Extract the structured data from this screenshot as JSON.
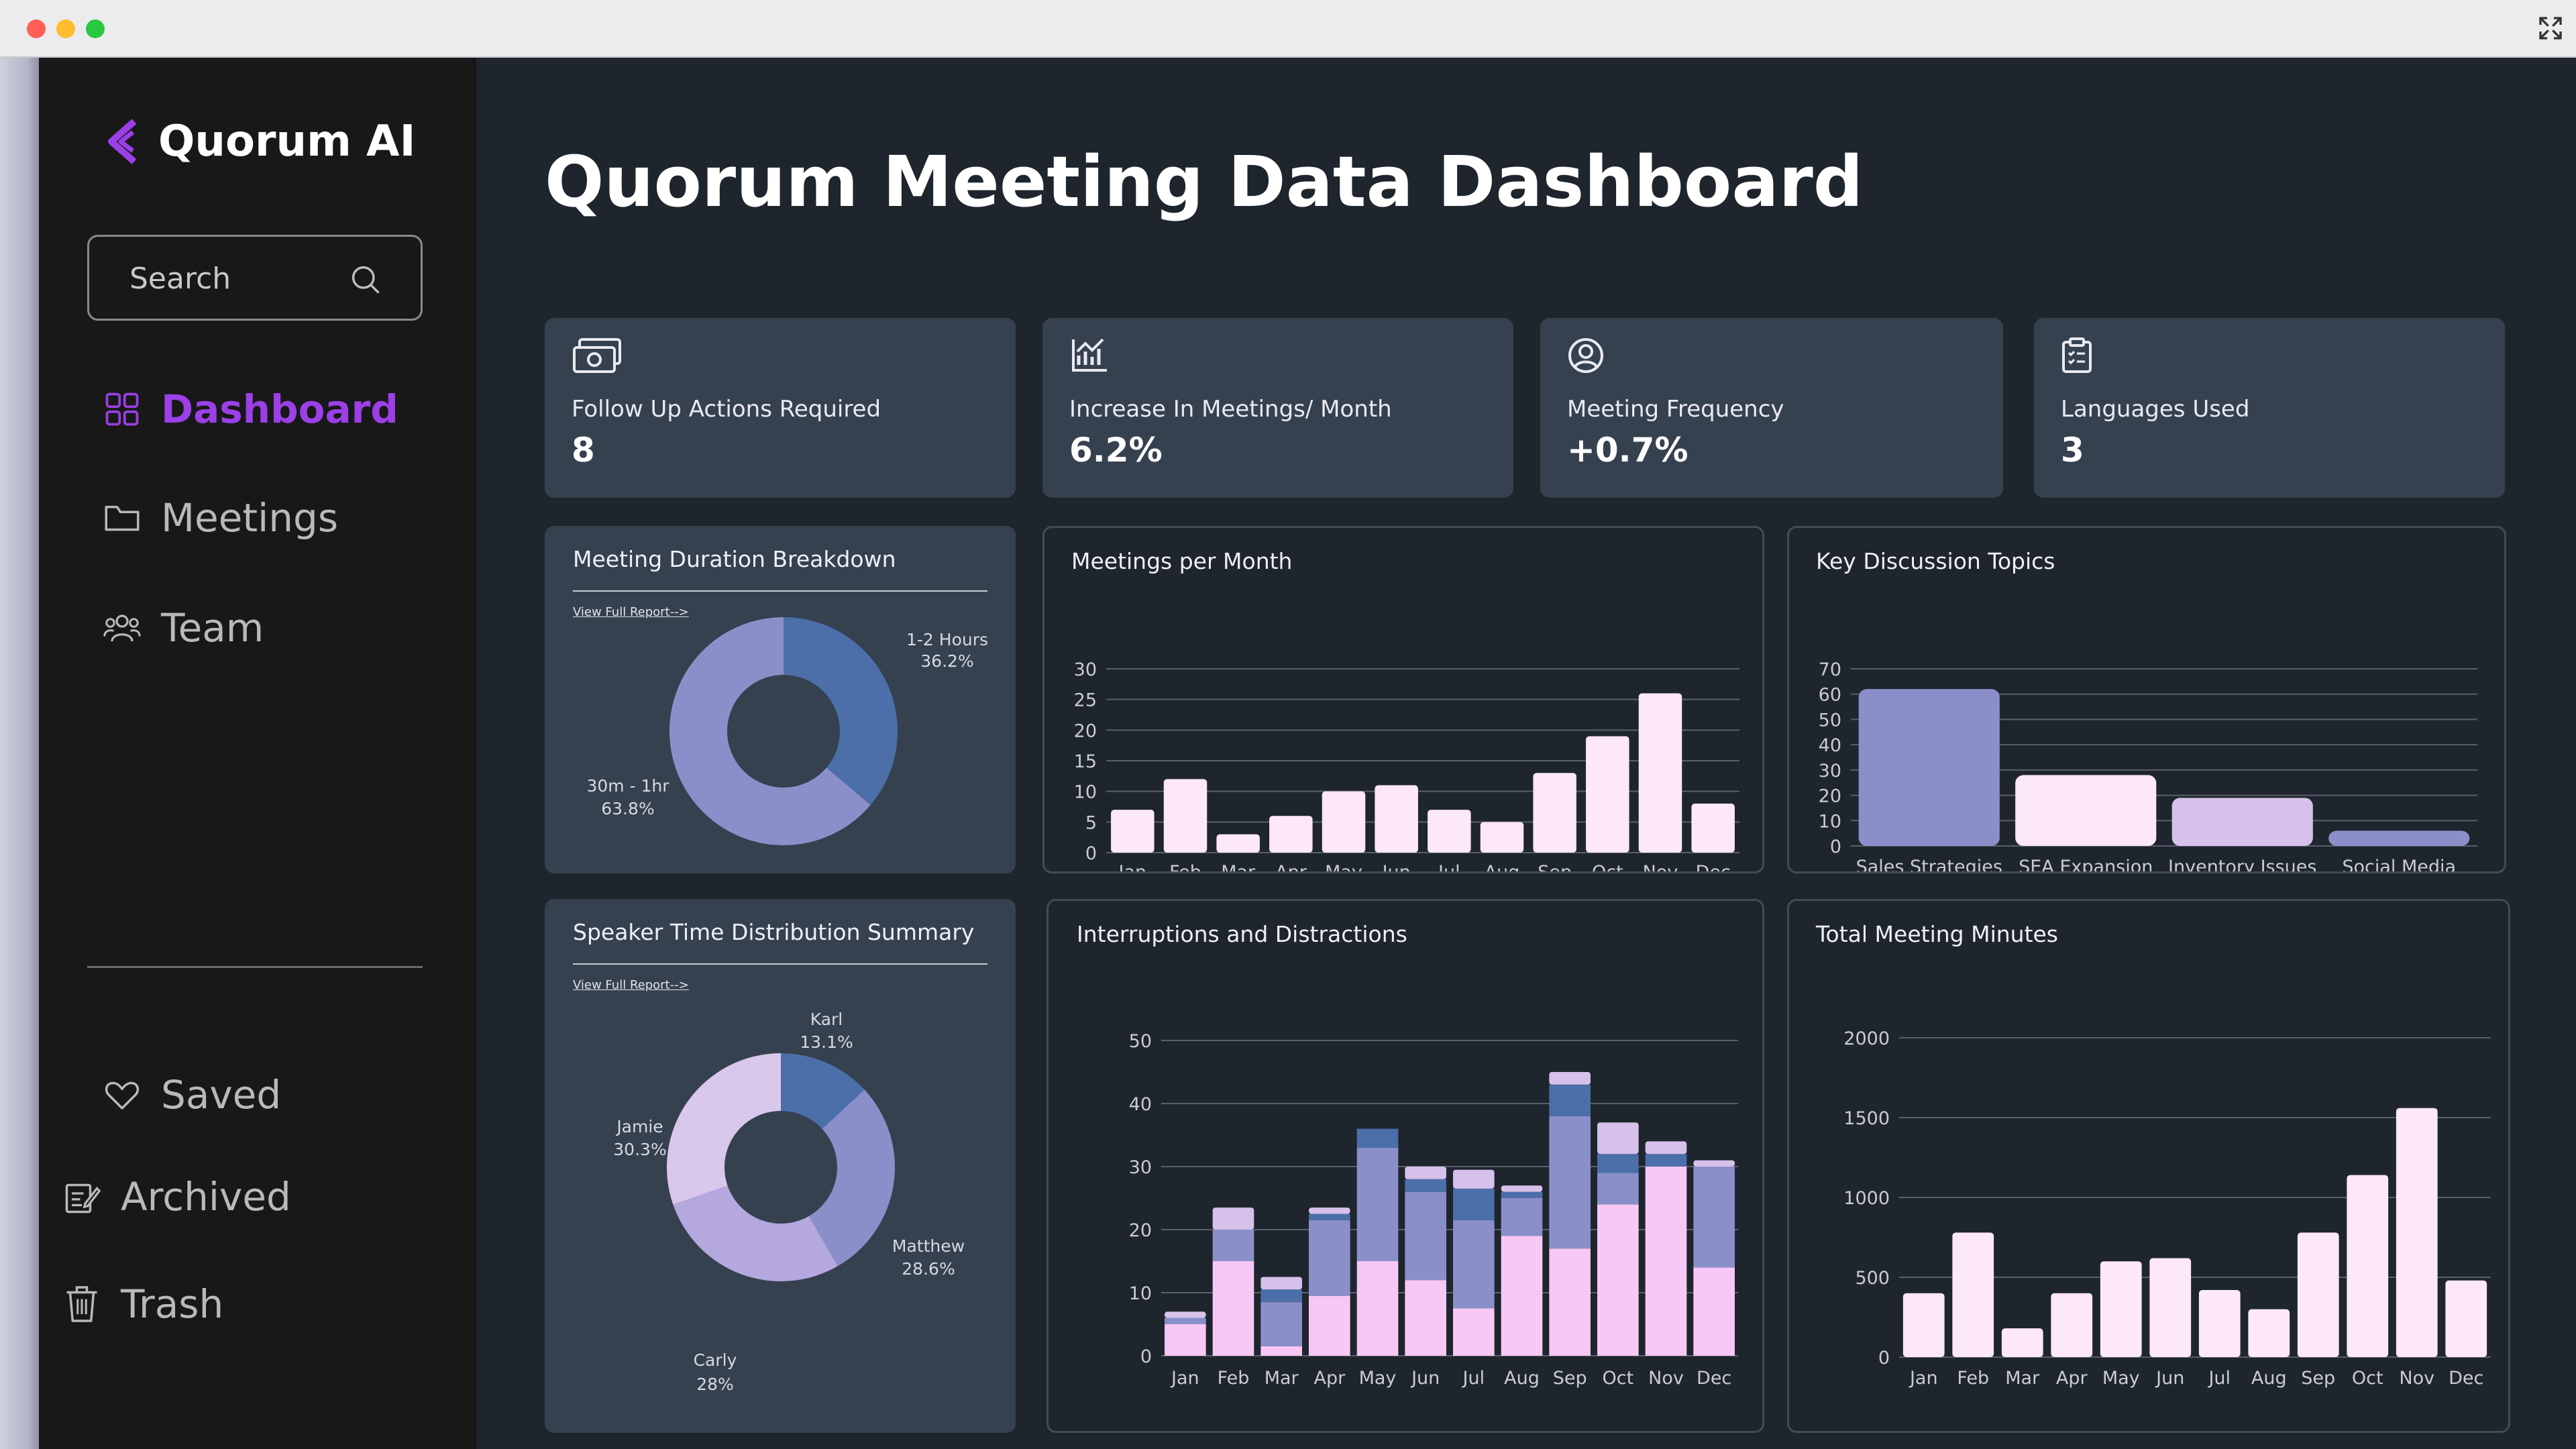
{
  "app": {
    "name": "Quorum AI"
  },
  "search": {
    "placeholder": "Search"
  },
  "nav": {
    "dashboard": "Dashboard",
    "meetings": "Meetings",
    "team": "Team",
    "saved": "Saved",
    "archived": "Archived",
    "trash": "Trash"
  },
  "page": {
    "title": "Quorum Meeting Data Dashboard"
  },
  "kpis": [
    {
      "label": "Follow Up Actions Required",
      "value": "8",
      "icon": "money-icon"
    },
    {
      "label": "Increase In Meetings/ Month",
      "value": "6.2%",
      "icon": "chart-icon"
    },
    {
      "label": "Meeting Frequency",
      "value": "+0.7%",
      "icon": "user-circle-icon"
    },
    {
      "label": "Languages Used",
      "value": "3",
      "icon": "clipboard-icon"
    }
  ],
  "colors": {
    "accent": "#9b3fe6",
    "blue": "#4c6faa",
    "lavender": "#8b8fc9",
    "lilac": "#d6c1ea",
    "pink": "#f7c8f5",
    "lightpink": "#fde7fb"
  },
  "charts": {
    "duration": {
      "title": "Meeting Duration Breakdown",
      "link": "View Full Report-->",
      "chart_data": {
        "type": "pie",
        "donut": true,
        "labels": [
          "1-2 Hours",
          "30m - 1hr"
        ],
        "values": [
          36.2,
          63.8
        ],
        "value_labels": [
          "36.2%",
          "63.8%"
        ],
        "colors": [
          "#4c6faa",
          "#8b8fc9"
        ]
      }
    },
    "speakers": {
      "title": "Speaker Time Distribution Summary",
      "link": "View Full Report-->",
      "chart_data": {
        "type": "pie",
        "donut": true,
        "labels": [
          "Karl",
          "Matthew",
          "Carly",
          "Jamie"
        ],
        "values": [
          13.1,
          28.6,
          28,
          30.3
        ],
        "value_labels": [
          "13.1%",
          "28.6%",
          "28%",
          "30.3%"
        ],
        "colors": [
          "#4c6faa",
          "#8b8fc9",
          "#b4a8df",
          "#d9c7ec"
        ]
      }
    },
    "meetings_per_month": {
      "title": "Meetings per Month",
      "chart_data": {
        "type": "bar",
        "categories": [
          "Jan",
          "Feb",
          "Mar",
          "Apr",
          "May",
          "Jun",
          "Jul",
          "Aug",
          "Sep",
          "Oct",
          "Nov",
          "Dec"
        ],
        "values": [
          7,
          12,
          3,
          6,
          10,
          11,
          7,
          5,
          13,
          19,
          26,
          8
        ],
        "ylim": [
          0,
          30
        ],
        "yticks": [
          0,
          5,
          10,
          15,
          20,
          25,
          30
        ],
        "color": "#fde7fb"
      }
    },
    "topics": {
      "title": "Key Discussion Topics",
      "chart_data": {
        "type": "bar",
        "categories": [
          "Sales Strategies",
          "SEA Expansion",
          "Inventory Issues",
          "Social Media"
        ],
        "values": [
          62,
          28,
          19,
          6
        ],
        "ylim": [
          0,
          70
        ],
        "yticks": [
          0,
          10,
          20,
          30,
          40,
          50,
          60,
          70
        ],
        "colors": [
          "#8b8fc9",
          "#fde7fb",
          "#d6c1ea",
          "#8b8fc9"
        ]
      }
    },
    "interruptions": {
      "title": "Interruptions and Distractions",
      "chart_data": {
        "type": "bar",
        "stacked": true,
        "categories": [
          "Jan",
          "Feb",
          "Mar",
          "Apr",
          "May",
          "Jun",
          "Jul",
          "Aug",
          "Sep",
          "Oct",
          "Nov",
          "Dec"
        ],
        "ylim": [
          0,
          50
        ],
        "yticks": [
          0,
          10,
          20,
          30,
          40,
          50
        ],
        "series": [
          {
            "values": [
              5,
              15,
              1.5,
              9.5,
              15,
              12,
              7.5,
              19,
              17,
              24,
              30,
              14
            ],
            "color": "#f7c8f5"
          },
          {
            "values": [
              1,
              5,
              7,
              12,
              18,
              14,
              14,
              6,
              21,
              5,
              0,
              16
            ],
            "color": "#8b8fc9"
          },
          {
            "values": [
              0,
              0,
              2,
              1,
              3,
              2,
              5,
              1,
              5,
              3,
              2,
              0
            ],
            "color": "#4c6faa"
          },
          {
            "values": [
              1,
              3.5,
              2,
              1,
              0,
              2,
              3,
              1,
              2,
              5,
              2,
              1
            ],
            "color": "#d6c1ea"
          }
        ]
      }
    },
    "minutes": {
      "title": "Total Meeting Minutes",
      "chart_data": {
        "type": "bar",
        "categories": [
          "Jan",
          "Feb",
          "Mar",
          "Apr",
          "May",
          "Jun",
          "Jul",
          "Aug",
          "Sep",
          "Oct",
          "Nov",
          "Dec"
        ],
        "values": [
          400,
          780,
          180,
          400,
          600,
          620,
          420,
          300,
          780,
          1140,
          1560,
          480
        ],
        "ylim": [
          0,
          2000
        ],
        "yticks": [
          0,
          500,
          1000,
          1500,
          2000
        ],
        "color": "#fde7fb"
      }
    }
  }
}
